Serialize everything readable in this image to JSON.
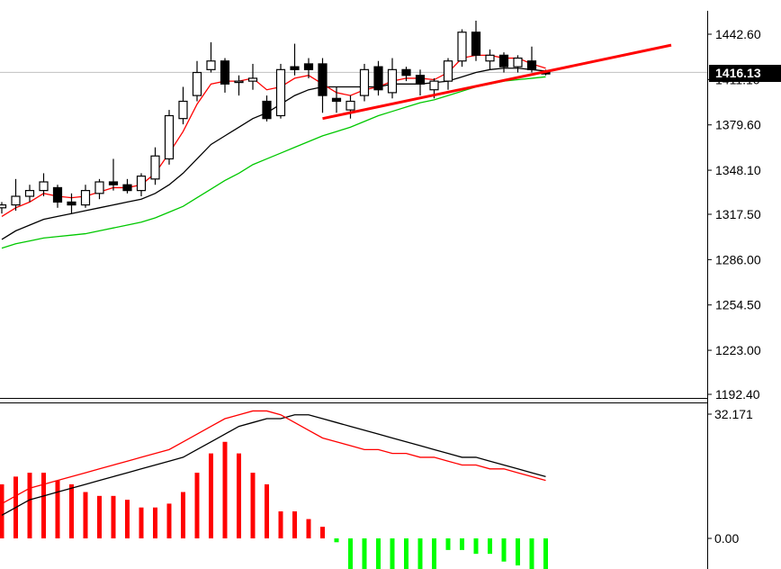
{
  "chart_data": [
    {
      "type": "candlestick",
      "name": "price-panel",
      "y_ticks": [
        "1442.60",
        "1411.10",
        "1379.60",
        "1348.10",
        "1317.50",
        "1286.00",
        "1254.50",
        "1223.00",
        "1192.40"
      ],
      "y_tick_values": [
        1442.6,
        1411.1,
        1379.6,
        1348.1,
        1317.5,
        1286.0,
        1254.5,
        1223.0,
        1192.4
      ],
      "ylim": [
        1192.4,
        1442.6
      ],
      "current_price": "1416.13",
      "current_price_value": 1416.13,
      "candles": [
        {
          "o": 1322,
          "h": 1326,
          "l": 1318,
          "c": 1324
        },
        {
          "o": 1324,
          "h": 1342,
          "l": 1320,
          "c": 1330
        },
        {
          "o": 1330,
          "h": 1338,
          "l": 1326,
          "c": 1334
        },
        {
          "o": 1334,
          "h": 1346,
          "l": 1330,
          "c": 1340
        },
        {
          "o": 1336,
          "h": 1338,
          "l": 1322,
          "c": 1326
        },
        {
          "o": 1326,
          "h": 1332,
          "l": 1318,
          "c": 1324
        },
        {
          "o": 1324,
          "h": 1338,
          "l": 1322,
          "c": 1334
        },
        {
          "o": 1332,
          "h": 1342,
          "l": 1328,
          "c": 1340
        },
        {
          "o": 1340,
          "h": 1356,
          "l": 1334,
          "c": 1338
        },
        {
          "o": 1338,
          "h": 1342,
          "l": 1332,
          "c": 1334
        },
        {
          "o": 1334,
          "h": 1346,
          "l": 1330,
          "c": 1344
        },
        {
          "o": 1342,
          "h": 1364,
          "l": 1338,
          "c": 1358
        },
        {
          "o": 1356,
          "h": 1390,
          "l": 1352,
          "c": 1386
        },
        {
          "o": 1384,
          "h": 1406,
          "l": 1380,
          "c": 1396
        },
        {
          "o": 1400,
          "h": 1424,
          "l": 1396,
          "c": 1416
        },
        {
          "o": 1418,
          "h": 1437,
          "l": 1416,
          "c": 1424
        },
        {
          "o": 1424,
          "h": 1426,
          "l": 1402,
          "c": 1408
        },
        {
          "o": 1410,
          "h": 1414,
          "l": 1400,
          "c": 1410
        },
        {
          "o": 1410,
          "h": 1422,
          "l": 1404,
          "c": 1412
        },
        {
          "o": 1396,
          "h": 1400,
          "l": 1382,
          "c": 1384
        },
        {
          "o": 1386,
          "h": 1422,
          "l": 1384,
          "c": 1418
        },
        {
          "o": 1420,
          "h": 1436,
          "l": 1414,
          "c": 1418
        },
        {
          "o": 1422,
          "h": 1426,
          "l": 1412,
          "c": 1418
        },
        {
          "o": 1422,
          "h": 1426,
          "l": 1388,
          "c": 1400
        },
        {
          "o": 1398,
          "h": 1406,
          "l": 1388,
          "c": 1396
        },
        {
          "o": 1390,
          "h": 1400,
          "l": 1384,
          "c": 1396
        },
        {
          "o": 1400,
          "h": 1422,
          "l": 1396,
          "c": 1418
        },
        {
          "o": 1420,
          "h": 1424,
          "l": 1400,
          "c": 1404
        },
        {
          "o": 1402,
          "h": 1426,
          "l": 1398,
          "c": 1418
        },
        {
          "o": 1418,
          "h": 1420,
          "l": 1410,
          "c": 1414
        },
        {
          "o": 1414,
          "h": 1418,
          "l": 1400,
          "c": 1408
        },
        {
          "o": 1404,
          "h": 1412,
          "l": 1398,
          "c": 1410
        },
        {
          "o": 1410,
          "h": 1426,
          "l": 1404,
          "c": 1424
        },
        {
          "o": 1424,
          "h": 1446,
          "l": 1420,
          "c": 1444
        },
        {
          "o": 1444,
          "h": 1452,
          "l": 1424,
          "c": 1428
        },
        {
          "o": 1424,
          "h": 1432,
          "l": 1418,
          "c": 1428
        },
        {
          "o": 1428,
          "h": 1430,
          "l": 1416,
          "c": 1420
        },
        {
          "o": 1420,
          "h": 1428,
          "l": 1416,
          "c": 1426
        },
        {
          "o": 1424,
          "h": 1434,
          "l": 1416,
          "c": 1418
        },
        {
          "o": 1416,
          "h": 1418,
          "l": 1414,
          "c": 1415
        }
      ],
      "ma_fast": [
        1316,
        1322,
        1326,
        1332,
        1330,
        1329,
        1330,
        1333,
        1336,
        1336,
        1338,
        1346,
        1360,
        1375,
        1394,
        1408,
        1410,
        1410,
        1412,
        1404,
        1406,
        1412,
        1414,
        1408,
        1402,
        1400,
        1404,
        1406,
        1410,
        1412,
        1412,
        1411,
        1416,
        1426,
        1428,
        1428,
        1426,
        1426,
        1422,
        1419
      ],
      "ma_slow": [
        1300,
        1306,
        1310,
        1314,
        1316,
        1318,
        1320,
        1322,
        1324,
        1326,
        1328,
        1332,
        1338,
        1346,
        1356,
        1366,
        1372,
        1378,
        1384,
        1388,
        1394,
        1400,
        1404,
        1406,
        1406,
        1406,
        1406,
        1406,
        1408,
        1408,
        1408,
        1409,
        1410,
        1413,
        1416,
        1418,
        1419,
        1419,
        1418,
        1417
      ],
      "ma_long": [
        1294,
        1297,
        1299,
        1301,
        1302,
        1303,
        1304,
        1306,
        1308,
        1310,
        1312,
        1315,
        1319,
        1323,
        1329,
        1335,
        1341,
        1346,
        1352,
        1356,
        1360,
        1364,
        1368,
        1372,
        1375,
        1378,
        1382,
        1386,
        1389,
        1392,
        1395,
        1397,
        1400,
        1403,
        1406,
        1408,
        1410,
        1411,
        1412,
        1413
      ],
      "trendline": {
        "from": {
          "index": 23,
          "price": 1384
        },
        "to": {
          "index": 48,
          "price": 1435
        }
      },
      "colors": {
        "bull_body": "#ffffff",
        "bear_body": "#000000",
        "wick": "#000000",
        "ma_fast": "#ff0000",
        "ma_slow": "#000000",
        "ma_long": "#00c800",
        "trendline": "#ff0000",
        "price_line": "#c0c0c0",
        "price_tag_bg": "#000000"
      }
    },
    {
      "type": "bar+line",
      "name": "macd-panel",
      "y_ticks": [
        "32.171",
        "0.00"
      ],
      "y_tick_values": [
        32.171,
        0.0
      ],
      "histogram": [
        14,
        16,
        17,
        17,
        15,
        14,
        12,
        11,
        11,
        10,
        8,
        8,
        9,
        12,
        17,
        22,
        25,
        22,
        17,
        14,
        7,
        7,
        5,
        3,
        -1,
        -10,
        -11,
        -10,
        -9,
        -9,
        -9,
        -10,
        -3,
        -3,
        -4,
        -4,
        -6,
        -7,
        -9,
        -10
      ],
      "macd_line": [
        9,
        11,
        13,
        14,
        15,
        16,
        17,
        18,
        19,
        20,
        21,
        22,
        23,
        25,
        27,
        29,
        31,
        32,
        33,
        33,
        32,
        30,
        28,
        26,
        25,
        24,
        23,
        23,
        22,
        22,
        21,
        21,
        20,
        19,
        19,
        18,
        18,
        17,
        16,
        15
      ],
      "signal_line": [
        6,
        8,
        10,
        11,
        12,
        13,
        14,
        15,
        16,
        17,
        18,
        19,
        20,
        21,
        23,
        25,
        27,
        29,
        30,
        31,
        31,
        32,
        32,
        31,
        30,
        29,
        28,
        27,
        26,
        25,
        24,
        23,
        22,
        21,
        21,
        20,
        19,
        18,
        17,
        16
      ],
      "colors": {
        "positive": "#ff0000",
        "negative": "#00ff00",
        "macd_line": "#ff0000",
        "signal_line": "#000000"
      }
    }
  ]
}
